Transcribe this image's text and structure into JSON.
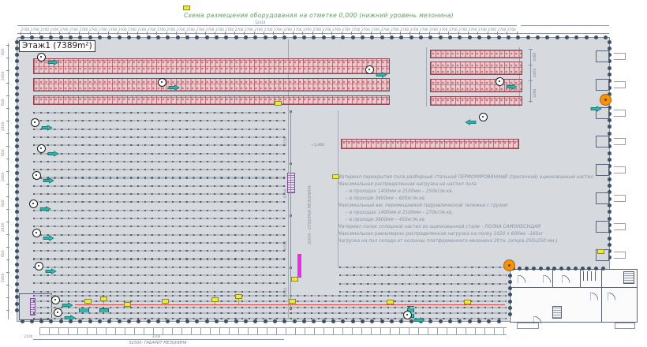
{
  "title": "Схема размещения оборудования на отметке 0,000 (нижний уровень мезонина)",
  "floor_label": "Этаж1 (7389m²)",
  "zone_label": "ЗОНА - ОТБОРКИ МЕЗОНИНА",
  "elevation_label": "+3,400",
  "specs": {
    "lines": [
      "Материал перекрытия пола  разборный стальной ПЕРФОРИРОВАННЫЙ (просечной) оцинкованный настил",
      "Максимальная распределенная нагрузка на настил пола",
      "– в проходах 1400мм и 2100мм – 250кг/м.кв.",
      "– в проходе 3600мм – 600кг/м.кв",
      "Максимальный вес перемещаемой гидравлической тележки с грузом",
      "– в проходах 1400мм и 2100мм – 270кг/м.кв.",
      "– в проходе 3600мм – 450кг/м.кв",
      "Материал полок  сплошной настил из оцинкованной стали – ПОЛКА САМОНЕСУЩАЯ",
      "Максимальная равномерно–распределенная нагрузка на полку 1020 x 600мк –160кг",
      "Нагрузка на пол склада от колонны платформенного мезонина 20тн. (опора 250х250 мм.)"
    ]
  },
  "dimensions": {
    "bay": "2700",
    "top_total": "52414",
    "bottom_total": "52500- ГАБАРИТ МЕЗОНИНА",
    "bottom_left": "2100",
    "bottom_mid": "3100",
    "right_chain": [
      "3280",
      "2400",
      "3280"
    ],
    "mid_chain": [
      "6750",
      "6750",
      "6750",
      "4050"
    ],
    "left_chain": [
      "600",
      "2400"
    ]
  },
  "colors": {
    "plan_bg": "#d6dade",
    "column": "#3d4f66",
    "rack_pink": "#eec9ce",
    "rack_line": "#8d4550",
    "teal_marker": "#2eb5ae",
    "note_yellow": "#efe93b",
    "marker_orange": "#f5930f",
    "stair_purple": "#a06cc0",
    "bar_magenta": "#e82de8",
    "line_red": "#e04545",
    "title_green": "#52a55a",
    "spec_text": "#8792a2"
  }
}
